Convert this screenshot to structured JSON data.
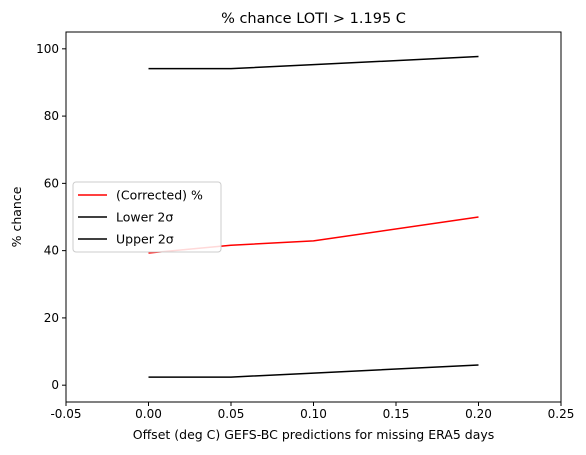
{
  "chart_data": {
    "type": "line",
    "title": "% chance LOTI > 1.195 C",
    "xlabel": "Offset (deg C) GEFS-BC predictions for missing ERA5 days",
    "ylabel": "% chance",
    "xlim": [
      -0.05,
      0.25
    ],
    "ylim": [
      -5,
      105
    ],
    "x_ticks": [
      -0.05,
      0.0,
      0.05,
      0.1,
      0.15,
      0.2,
      0.25
    ],
    "x_tick_labels": [
      "-0.05",
      "0.00",
      "0.05",
      "0.10",
      "0.15",
      "0.20",
      "0.25"
    ],
    "y_ticks": [
      0,
      20,
      40,
      60,
      80,
      100
    ],
    "y_tick_labels": [
      "0",
      "20",
      "40",
      "60",
      "80",
      "100"
    ],
    "grid": false,
    "legend_position": "center-left",
    "x": [
      0.0,
      0.05,
      0.1,
      0.2
    ],
    "series": [
      {
        "name": "(Corrected) %",
        "color": "#ff0000",
        "values": [
          39.3,
          41.6,
          42.9,
          50.0
        ]
      },
      {
        "name": "Lower 2σ",
        "color": "#000000",
        "values": [
          2.4,
          2.4,
          3.6,
          6.0
        ]
      },
      {
        "name": "Upper 2σ",
        "color": "#000000",
        "values": [
          94.1,
          94.1,
          95.3,
          97.7
        ]
      }
    ]
  }
}
